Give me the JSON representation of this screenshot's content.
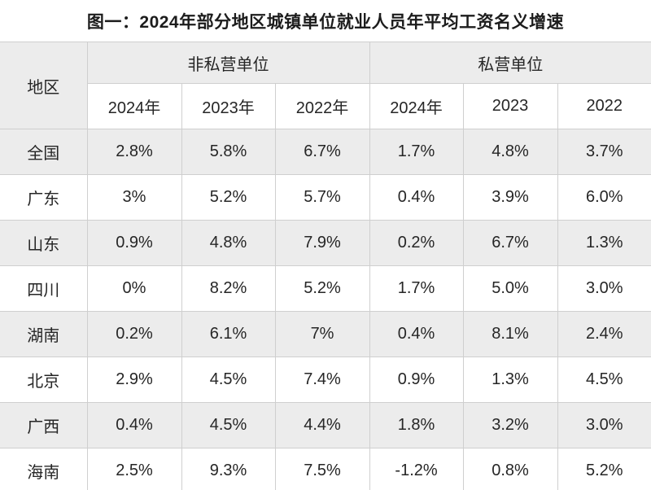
{
  "title": "图一：2024年部分地区城镇单位就业人员年平均工资名义增速",
  "table": {
    "region_header": "地区",
    "groups": [
      {
        "label": "非私营单位",
        "years": [
          "2024年",
          "2023年",
          "2022年"
        ]
      },
      {
        "label": "私营单位",
        "years": [
          "2024年",
          "2023",
          "2022"
        ]
      }
    ],
    "rows": [
      {
        "region": "全国",
        "values": [
          "2.8%",
          "5.8%",
          "6.7%",
          "1.7%",
          "4.8%",
          "3.7%"
        ]
      },
      {
        "region": "广东",
        "values": [
          "3%",
          "5.2%",
          "5.7%",
          "0.4%",
          "3.9%",
          "6.0%"
        ]
      },
      {
        "region": "山东",
        "values": [
          "0.9%",
          "4.8%",
          "7.9%",
          "0.2%",
          "6.7%",
          "1.3%"
        ]
      },
      {
        "region": "四川",
        "values": [
          "0%",
          "8.2%",
          "5.2%",
          "1.7%",
          "5.0%",
          "3.0%"
        ]
      },
      {
        "region": "湖南",
        "values": [
          "0.2%",
          "6.1%",
          "7%",
          "0.4%",
          "8.1%",
          "2.4%"
        ]
      },
      {
        "region": "北京",
        "values": [
          "2.9%",
          "4.5%",
          "7.4%",
          "0.9%",
          "1.3%",
          "4.5%"
        ]
      },
      {
        "region": "广西",
        "values": [
          "0.4%",
          "4.5%",
          "4.4%",
          "1.8%",
          "3.2%",
          "3.0%"
        ]
      },
      {
        "region": "海南",
        "values": [
          "2.5%",
          "9.3%",
          "7.5%",
          "-1.2%",
          "0.8%",
          "5.2%"
        ]
      }
    ],
    "colors": {
      "row_alt_gray": "#ececec",
      "border": "#cfcfcf",
      "text": "#262626"
    }
  },
  "chart_data": {
    "type": "table",
    "title": "图一：2024年部分地区城镇单位就业人员年平均工资名义增速",
    "row_header": "地区",
    "column_groups": [
      "非私营单位",
      "私营单位"
    ],
    "columns": [
      "非私营单位 2024年",
      "非私营单位 2023年",
      "非私营单位 2022年",
      "私营单位 2024年",
      "私营单位 2023",
      "私营单位 2022"
    ],
    "categories": [
      "全国",
      "广东",
      "山东",
      "四川",
      "湖南",
      "北京",
      "广西",
      "海南"
    ],
    "series": [
      {
        "name": "非私营单位 2024年",
        "values": [
          2.8,
          3,
          0.9,
          0,
          0.2,
          2.9,
          0.4,
          2.5
        ]
      },
      {
        "name": "非私营单位 2023年",
        "values": [
          5.8,
          5.2,
          4.8,
          8.2,
          6.1,
          4.5,
          4.5,
          9.3
        ]
      },
      {
        "name": "非私营单位 2022年",
        "values": [
          6.7,
          5.7,
          7.9,
          5.2,
          7,
          7.4,
          4.4,
          7.5
        ]
      },
      {
        "name": "私营单位 2024年",
        "values": [
          1.7,
          0.4,
          0.2,
          1.7,
          0.4,
          0.9,
          1.8,
          -1.2
        ]
      },
      {
        "name": "私营单位 2023",
        "values": [
          4.8,
          3.9,
          6.7,
          5.0,
          8.1,
          1.3,
          3.2,
          0.8
        ]
      },
      {
        "name": "私营单位 2022",
        "values": [
          3.7,
          6.0,
          1.3,
          3.0,
          2.4,
          4.5,
          3.0,
          5.2
        ]
      }
    ],
    "unit": "%"
  }
}
